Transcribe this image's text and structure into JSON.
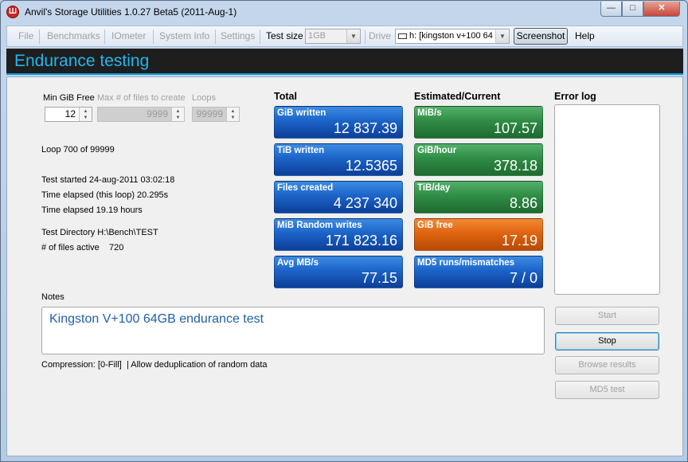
{
  "window": {
    "title": "Anvil's Storage Utilities 1.0.27 Beta5 (2011-Aug-1)",
    "icon": "anvil-app-icon",
    "controls": {
      "minimize": "—",
      "maximize": "□",
      "close": "✕"
    }
  },
  "menu": {
    "file": "File",
    "benchmarks": "Benchmarks",
    "iometer": "IOmeter",
    "system_info": "System Info",
    "settings": "Settings",
    "test_size_label": "Test size",
    "test_size_value": "1GB",
    "drive_label": "Drive",
    "drive_value": "h: [kingston v+100 64",
    "screenshot": "Screenshot",
    "help": "Help"
  },
  "header": {
    "title": "Endurance testing"
  },
  "params": {
    "min_free_label": "Min GiB Free",
    "min_free_value": "12",
    "max_files_label": "Max # of files to create",
    "max_files_value": "9999",
    "loops_label": "Loops",
    "loops_value": "99999"
  },
  "status": {
    "loop": "Loop 700 of 99999",
    "test_started": "Test started 24-aug-2011 03:02:18",
    "elapsed_loop": "Time elapsed (this loop) 20.295s",
    "elapsed_total": "Time elapsed 19.19 hours",
    "test_directory": "Test Directory H:\\Bench\\TEST",
    "files_active": "# of files active    720"
  },
  "total": {
    "heading": "Total",
    "tiles": [
      {
        "label": "GiB written",
        "value": "12 837.39"
      },
      {
        "label": "TiB written",
        "value": "12.5365"
      },
      {
        "label": "Files created",
        "value": "4 237 340"
      },
      {
        "label": "MiB Random writes",
        "value": "171 823.16"
      },
      {
        "label": "Avg MB/s",
        "value": "77.15"
      }
    ]
  },
  "estimated": {
    "heading": "Estimated/Current",
    "tiles": [
      {
        "label": "MiB/s",
        "value": "107.57",
        "color": "#2f8d46"
      },
      {
        "label": "GiB/hour",
        "value": "378.18",
        "color": "#2f8d46"
      },
      {
        "label": "TiB/day",
        "value": "8.86",
        "color": "#2f8d46"
      },
      {
        "label": "GiB free",
        "value": "17.19",
        "color": "#e06410"
      },
      {
        "label": "MD5 runs/mismatches",
        "value": "7 / 0",
        "color": "#1c64c8"
      }
    ]
  },
  "error_log": {
    "heading": "Error log"
  },
  "notes": {
    "label": "Notes",
    "text": "Kingston V+100 64GB endurance test",
    "compression": "Compression: [0-Fill]  | Allow deduplication of random data"
  },
  "buttons": {
    "start": "Start",
    "stop": "Stop",
    "browse": "Browse results",
    "md5": "MD5 test"
  },
  "colors": {
    "header_bg": "#1e1e1e",
    "header_text": "#21b6ec",
    "tile_blue": "#1c64c8",
    "tile_green": "#2f8d46",
    "tile_orange": "#e06410"
  }
}
